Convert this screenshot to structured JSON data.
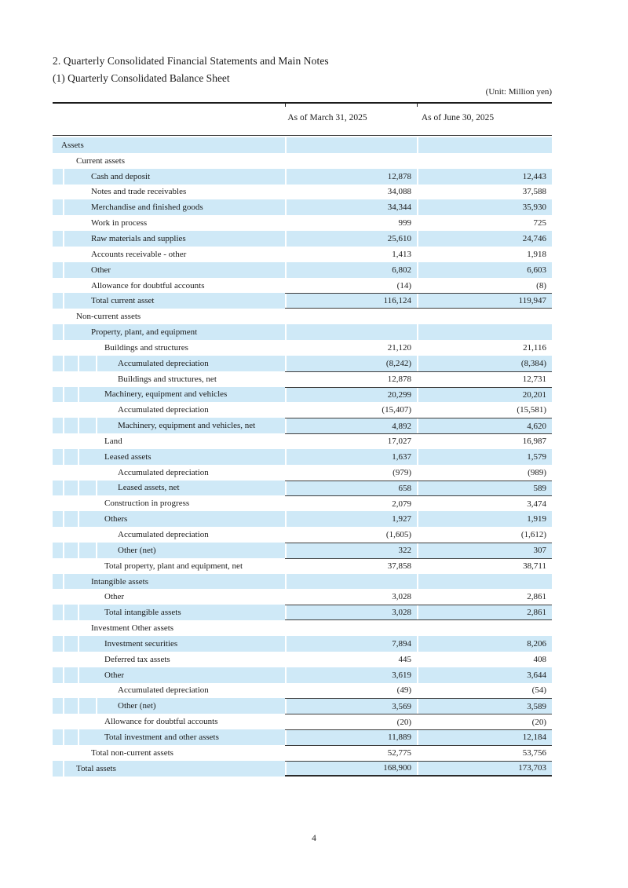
{
  "page": {
    "title_line1": "2. Quarterly Consolidated Financial Statements and Main Notes",
    "title_line2": "(1) Quarterly Consolidated Balance Sheet",
    "unit_note": "(Unit: Million yen)",
    "page_number": "4"
  },
  "table": {
    "columns": [
      "As of March 31, 2025",
      "As of June 30, 2025"
    ],
    "stripe_color": "#cfe9f7",
    "rule_color": "#3d3d3d",
    "rows": [
      {
        "label": "Assets",
        "indent": 0,
        "v1": "",
        "v2": ""
      },
      {
        "label": "Current assets",
        "indent": 1,
        "v1": "",
        "v2": ""
      },
      {
        "label": "Cash and deposit",
        "indent": 2,
        "v1": "12,878",
        "v2": "12,443"
      },
      {
        "label": "Notes and trade receivables",
        "indent": 2,
        "v1": "34,088",
        "v2": "37,588"
      },
      {
        "label": "Merchandise and finished goods",
        "indent": 2,
        "v1": "34,344",
        "v2": "35,930"
      },
      {
        "label": "Work in process",
        "indent": 2,
        "v1": "999",
        "v2": "725"
      },
      {
        "label": "Raw materials and supplies",
        "indent": 2,
        "v1": "25,610",
        "v2": "24,746"
      },
      {
        "label": "Accounts receivable - other",
        "indent": 2,
        "v1": "1,413",
        "v2": "1,918"
      },
      {
        "label": "Other",
        "indent": 2,
        "v1": "6,802",
        "v2": "6,603"
      },
      {
        "label": "Allowance for doubtful accounts",
        "indent": 2,
        "v1": "(14)",
        "v2": "(8)"
      },
      {
        "label": "Total current asset",
        "indent": 2,
        "v1": "116,124",
        "v2": "119,947",
        "bt": true,
        "bb": true
      },
      {
        "label": "Non-current assets",
        "indent": 1,
        "v1": "",
        "v2": ""
      },
      {
        "label": "Property, plant, and equipment",
        "indent": 2,
        "v1": "",
        "v2": ""
      },
      {
        "label": "Buildings and structures",
        "indent": 3,
        "v1": "21,120",
        "v2": "21,116"
      },
      {
        "label": "Accumulated depreciation",
        "indent": 4,
        "v1": "(8,242)",
        "v2": "(8,384)"
      },
      {
        "label": "Buildings and structures, net",
        "indent": 4,
        "v1": "12,878",
        "v2": "12,731",
        "bt": true
      },
      {
        "label": "Machinery, equipment and vehicles",
        "indent": 3,
        "v1": "20,299",
        "v2": "20,201",
        "bt": true
      },
      {
        "label": "Accumulated depreciation",
        "indent": 4,
        "v1": "(15,407)",
        "v2": "(15,581)"
      },
      {
        "label": "Machinery, equipment and vehicles, net",
        "indent": 4,
        "v1": "4,892",
        "v2": "4,620",
        "bt": true
      },
      {
        "label": "Land",
        "indent": 3,
        "v1": "17,027",
        "v2": "16,987",
        "bt": true
      },
      {
        "label": "Leased assets",
        "indent": 3,
        "v1": "1,637",
        "v2": "1,579"
      },
      {
        "label": "Accumulated depreciation",
        "indent": 4,
        "v1": "(979)",
        "v2": "(989)"
      },
      {
        "label": "Leased assets, net",
        "indent": 4,
        "v1": "658",
        "v2": "589",
        "bt": true
      },
      {
        "label": "Construction in progress",
        "indent": 3,
        "v1": "2,079",
        "v2": "3,474",
        "bt": true
      },
      {
        "label": "Others",
        "indent": 3,
        "v1": "1,927",
        "v2": "1,919"
      },
      {
        "label": "Accumulated depreciation",
        "indent": 4,
        "v1": "(1,605)",
        "v2": "(1,612)"
      },
      {
        "label": "Other (net)",
        "indent": 4,
        "v1": "322",
        "v2": "307",
        "bt": true
      },
      {
        "label": "Total property, plant and equipment, net",
        "indent": 3,
        "v1": "37,858",
        "v2": "38,711",
        "bt": true
      },
      {
        "label": "Intangible assets",
        "indent": 2,
        "v1": "",
        "v2": ""
      },
      {
        "label": "Other",
        "indent": 3,
        "v1": "3,028",
        "v2": "2,861"
      },
      {
        "label": "Total intangible assets",
        "indent": 3,
        "v1": "3,028",
        "v2": "2,861",
        "bt": true,
        "bb": true
      },
      {
        "label": "Investment Other assets",
        "indent": 2,
        "v1": "",
        "v2": ""
      },
      {
        "label": "Investment securities",
        "indent": 3,
        "v1": "7,894",
        "v2": "8,206"
      },
      {
        "label": "Deferred tax assets",
        "indent": 3,
        "v1": "445",
        "v2": "408"
      },
      {
        "label": "Other",
        "indent": 3,
        "v1": "3,619",
        "v2": "3,644"
      },
      {
        "label": "Accumulated depreciation",
        "indent": 4,
        "v1": "(49)",
        "v2": "(54)"
      },
      {
        "label": "Other (net)",
        "indent": 4,
        "v1": "3,569",
        "v2": "3,589",
        "bt": true
      },
      {
        "label": "Allowance for doubtful accounts",
        "indent": 3,
        "v1": "(20)",
        "v2": "(20)",
        "bt": true
      },
      {
        "label": "Total investment and other assets",
        "indent": 3,
        "v1": "11,889",
        "v2": "12,184",
        "bt": true
      },
      {
        "label": "Total non-current assets",
        "indent": 2,
        "v1": "52,775",
        "v2": "53,756",
        "bt": true
      },
      {
        "label": "Total assets",
        "indent": 1,
        "v1": "168,900",
        "v2": "173,703",
        "bt": true,
        "bb": true
      }
    ]
  }
}
